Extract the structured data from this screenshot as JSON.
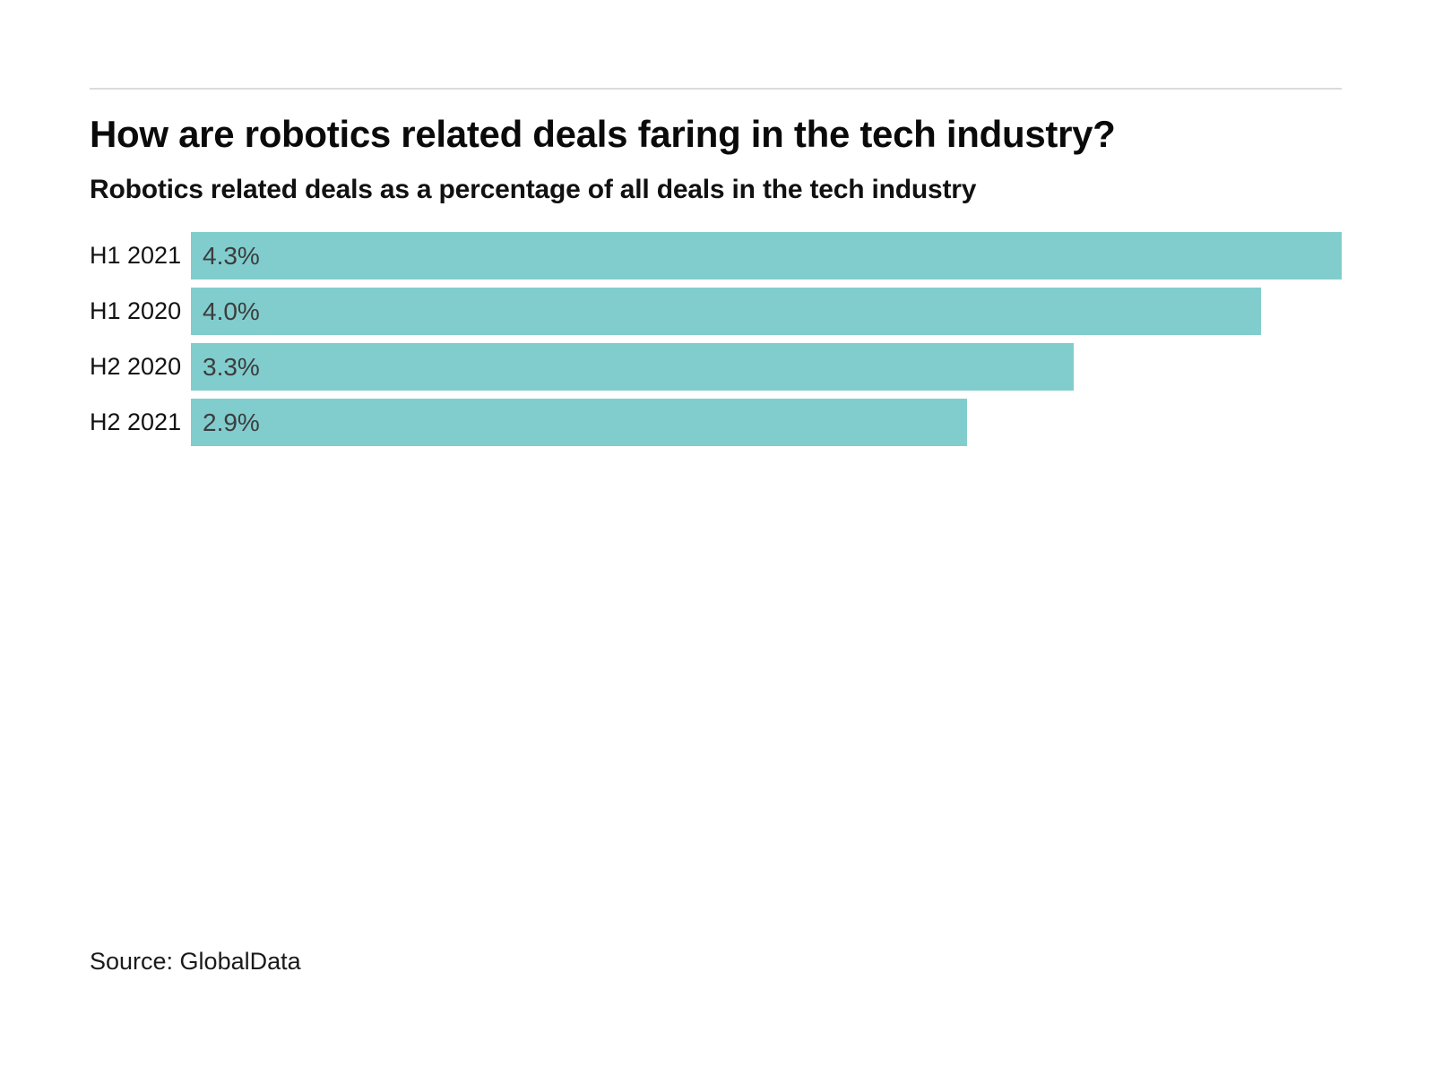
{
  "header": {
    "title": "How are robotics related deals faring in the tech industry?",
    "subtitle": "Robotics related deals as a percentage of all deals in the tech industry"
  },
  "footer": {
    "source": "Source: GlobalData"
  },
  "colors": {
    "bar": "#81cdce",
    "value_label": "#3d3d3d",
    "category_label": "#121212",
    "title": "#0a0a0a",
    "divider": "#dbdbdb",
    "background": "#ffffff"
  },
  "chart_data": {
    "type": "bar",
    "orientation": "horizontal",
    "title": "How are robotics related deals faring in the tech industry?",
    "subtitle": "Robotics related deals as a percentage of all deals in the tech industry",
    "categories": [
      "H1 2021",
      "H1 2020",
      "H2 2020",
      "H2 2021"
    ],
    "values": [
      4.3,
      4.0,
      3.3,
      2.9
    ],
    "value_labels": [
      "4.3%",
      "4.0%",
      "3.3%",
      "2.9%"
    ],
    "unit": "%",
    "xlim": [
      0,
      4.3
    ],
    "grid": false,
    "legend": false,
    "value_label_position": "inside-left",
    "source": "Source: GlobalData"
  }
}
